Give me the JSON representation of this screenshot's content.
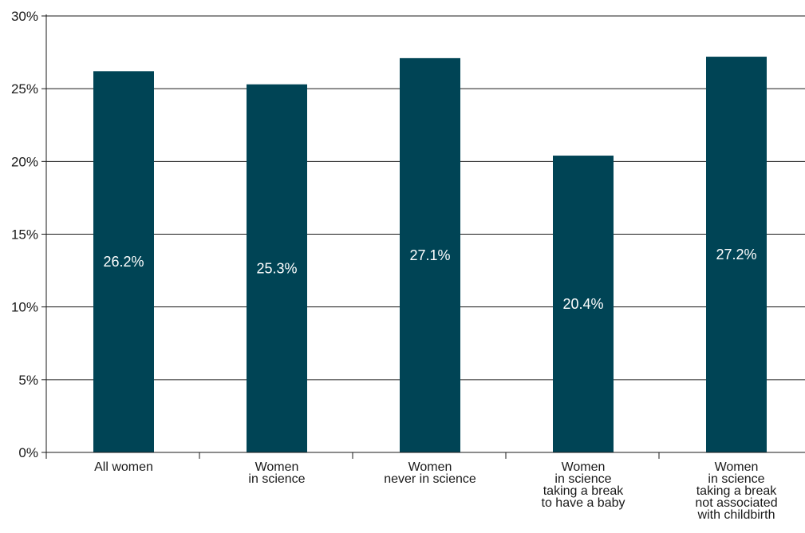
{
  "chart_data": {
    "type": "bar",
    "categories": [
      [
        "All women"
      ],
      [
        "Women",
        "in science"
      ],
      [
        "Women",
        "never in science"
      ],
      [
        "Women",
        "in science",
        "taking a break",
        "to have a baby"
      ],
      [
        "Women",
        "in science",
        "taking a break",
        "not associated",
        "with childbirth"
      ]
    ],
    "values": [
      26.2,
      25.3,
      27.1,
      20.4,
      27.2
    ],
    "data_labels": [
      "26.2%",
      "25.3%",
      "27.1%",
      "20.4%",
      "27.2%"
    ],
    "y_ticks": [
      0,
      5,
      10,
      15,
      20,
      25,
      30
    ],
    "y_tick_labels": [
      "0%",
      "5%",
      "10%",
      "15%",
      "20%",
      "25%",
      "30%"
    ],
    "ylim": [
      0,
      30
    ],
    "grid": true,
    "legend": "none",
    "colors": {
      "bar": "#004455",
      "grid": "#1a1a1a",
      "axis": "#1a1a1a",
      "bar_label": "#ffffff"
    }
  }
}
